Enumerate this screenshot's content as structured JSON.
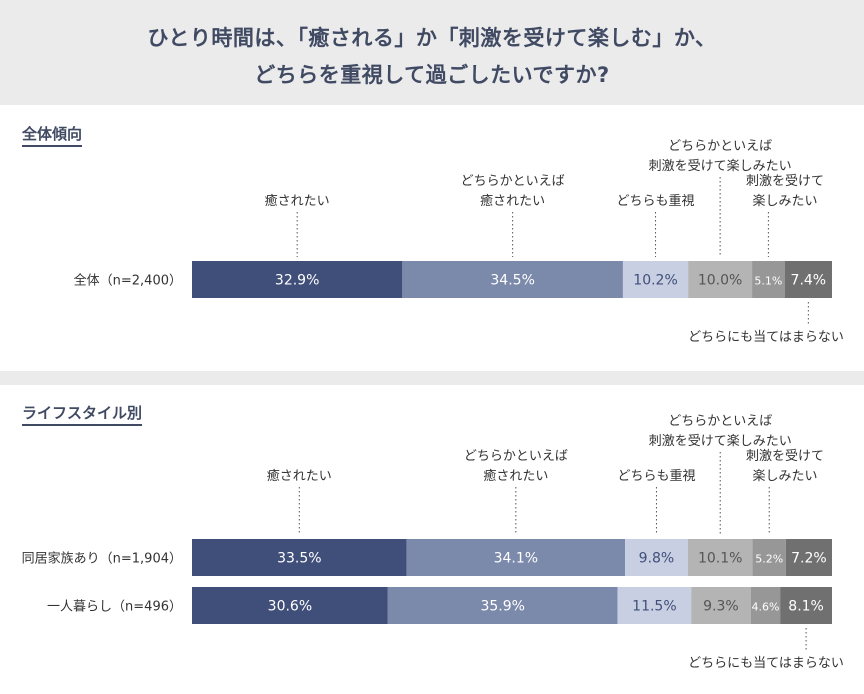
{
  "title": {
    "line1": "ひとり時間は、「癒される」か「刺激を受けて楽しむ」か、",
    "line2": "どちらを重視して過ごしたいですか?"
  },
  "sections": {
    "overall": "全体傾向",
    "lifestyle": "ライフスタイル別"
  },
  "colors": {
    "header_bg": "#ebebeb",
    "title_text": "#404a63",
    "series": [
      "#404f7a",
      "#7b89aa",
      "#c8cfe2",
      "#b4b4b4",
      "#979797",
      "#707070"
    ]
  },
  "chart_data": {
    "type": "bar",
    "orientation": "horizontal",
    "stacked": true,
    "series_names": [
      "癒されたい",
      "どちらかといえば\n癒されたい",
      "どちらも重視",
      "どちらかといえば\n刺激を受けて楽しみたい",
      "刺激を受けて\n楽しみたい",
      "どちらにも当てはまらない"
    ],
    "groups": [
      {
        "section": "全体傾向",
        "rows": [
          {
            "label": "全体（n=2,400）",
            "values": [
              32.9,
              34.5,
              10.2,
              10.0,
              5.1,
              7.4
            ]
          }
        ]
      },
      {
        "section": "ライフスタイル別",
        "rows": [
          {
            "label": "同居家族あり（n=1,904）",
            "values": [
              33.5,
              34.1,
              9.8,
              10.1,
              5.2,
              7.2
            ]
          },
          {
            "label": "一人暮らし（n=496）",
            "values": [
              30.6,
              35.9,
              11.5,
              9.3,
              4.6,
              8.1
            ]
          }
        ]
      }
    ],
    "unit": "%"
  }
}
